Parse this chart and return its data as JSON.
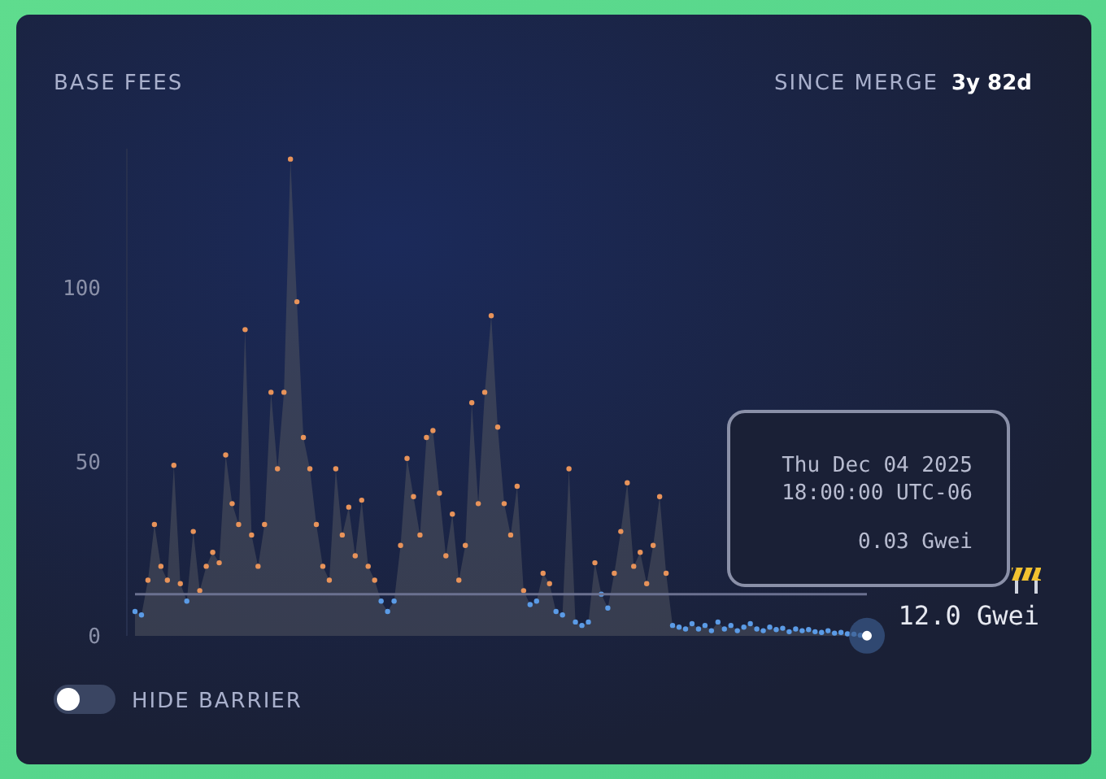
{
  "chart_data": {
    "type": "area",
    "title": "BASE FEES",
    "subtitle": "SINCE MERGE",
    "annotations": [
      "3y 82d",
      "HIDE BARRIER",
      "Thu Dec 04 2025",
      "18:00:00 UTC-06",
      "0.03 Gwei"
    ],
    "categories": [
      null,
      null,
      null,
      null,
      null,
      null,
      null,
      null,
      null,
      null,
      null,
      null,
      null,
      null,
      null,
      null,
      null,
      null,
      null,
      null,
      null,
      null,
      null,
      null,
      null,
      null,
      null,
      null,
      null,
      null,
      null,
      null,
      null,
      null,
      null,
      null,
      null,
      null,
      null,
      null,
      null,
      null,
      null,
      null,
      null,
      null,
      null,
      null,
      null,
      null,
      null,
      null,
      null,
      null,
      null,
      null,
      null,
      null,
      null,
      null,
      null,
      null,
      null,
      null,
      null,
      null,
      null,
      null,
      null,
      null,
      null,
      null,
      null,
      null,
      null,
      null,
      null,
      null,
      null,
      null,
      null,
      null,
      null,
      null,
      null,
      null,
      null,
      null,
      null,
      null,
      null,
      null,
      null,
      null,
      null,
      null,
      null,
      null,
      null,
      null,
      null,
      null,
      null,
      null,
      null,
      null,
      null,
      null,
      null,
      null,
      null,
      null,
      null,
      null
    ],
    "series": [
      {
        "color": "#50535f",
        "values": [
          7,
          6,
          16,
          32,
          20,
          16,
          49,
          15,
          10,
          30,
          13,
          20,
          24,
          21,
          52,
          38,
          32,
          88,
          29,
          20,
          32,
          70,
          48,
          70,
          137,
          96,
          57,
          48,
          32,
          20,
          16,
          48,
          29,
          37,
          23,
          39,
          20,
          16,
          10,
          7,
          10,
          26,
          51,
          40,
          29,
          57,
          59,
          41,
          23,
          35,
          16,
          26,
          67,
          38,
          70,
          92,
          60,
          38,
          29,
          43,
          13,
          9,
          10,
          18,
          15,
          7,
          6,
          48,
          4,
          3,
          4,
          21,
          12,
          8,
          18,
          30,
          44,
          20,
          24,
          15,
          26,
          40,
          18,
          3,
          2.5,
          2,
          3.5,
          2,
          3,
          1.5,
          4,
          2,
          3,
          1.5,
          2.5,
          3.5,
          2,
          1.5,
          2.5,
          1.8,
          2.2,
          1.2,
          2,
          1.5,
          1.8,
          1.2,
          1,
          1.5,
          0.8,
          1,
          0.6,
          0.5,
          0.2,
          0.03
        ],
        "colors": [
          "#5b9be6",
          "#5b9be6",
          "#e8935a",
          "#e8935a",
          "#e8935a",
          "#e8935a",
          "#e8935a",
          "#e8935a",
          "#5b9be6",
          "#e8935a",
          "#e8935a",
          "#e8935a",
          "#e8935a",
          "#e8935a",
          "#e8935a",
          "#e8935a",
          "#e8935a",
          "#e8935a",
          "#e8935a",
          "#e8935a",
          "#e8935a",
          "#e8935a",
          "#e8935a",
          "#e8935a",
          "#e8935a",
          "#e8935a",
          "#e8935a",
          "#e8935a",
          "#e8935a",
          "#e8935a",
          "#e8935a",
          "#e8935a",
          "#e8935a",
          "#e8935a",
          "#e8935a",
          "#e8935a",
          "#e8935a",
          "#e8935a",
          "#5b9be6",
          "#5b9be6",
          "#5b9be6",
          "#e8935a",
          "#e8935a",
          "#e8935a",
          "#e8935a",
          "#e8935a",
          "#e8935a",
          "#e8935a",
          "#e8935a",
          "#e8935a",
          "#e8935a",
          "#e8935a",
          "#e8935a",
          "#e8935a",
          "#e8935a",
          "#e8935a",
          "#e8935a",
          "#e8935a",
          "#e8935a",
          "#e8935a",
          "#e8935a",
          "#5b9be6",
          "#5b9be6",
          "#e8935a",
          "#e8935a",
          "#5b9be6",
          "#5b9be6",
          "#e8935a",
          "#5b9be6",
          "#5b9be6",
          "#5b9be6",
          "#e8935a",
          "#5b9be6",
          "#5b9be6",
          "#e8935a",
          "#e8935a",
          "#e8935a",
          "#e8935a",
          "#e8935a",
          "#e8935a",
          "#e8935a",
          "#e8935a",
          "#e8935a",
          "#5b9be6",
          "#5b9be6",
          "#5b9be6",
          "#5b9be6",
          "#5b9be6",
          "#5b9be6",
          "#5b9be6",
          "#5b9be6",
          "#5b9be6",
          "#5b9be6",
          "#5b9be6",
          "#5b9be6",
          "#5b9be6",
          "#5b9be6",
          "#5b9be6",
          "#5b9be6",
          "#5b9be6",
          "#5b9be6",
          "#5b9be6",
          "#5b9be6",
          "#5b9be6",
          "#5b9be6",
          "#5b9be6",
          "#5b9be6",
          "#5b9be6",
          "#5b9be6",
          "#5b9be6",
          "#5b9be6",
          "#5b9be6",
          "#5b9be6",
          "#5b9be6"
        ]
      }
    ],
    "marker": "circle",
    "ylim": [
      0,
      140
    ],
    "yticks": [
      0,
      50,
      100
    ],
    "tick_labels": "y",
    "ref_lines": [
      {
        "axis": "y",
        "value": 12,
        "label": "12.0 Gwei",
        "color": "#6b7190"
      }
    ]
  }
}
